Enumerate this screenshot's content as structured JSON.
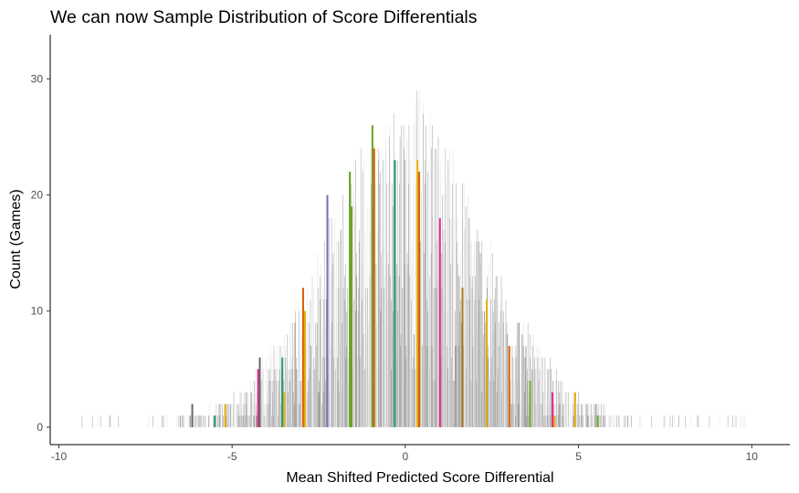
{
  "chart_data": {
    "type": "bar",
    "title": "We can now Sample Distribution of Score Differentials",
    "xlabel": "Mean Shifted Predicted Score Differential",
    "ylabel": "Count (Games)",
    "xlim": [
      -10.25,
      11.1
    ],
    "ylim": [
      -1.5,
      33.8
    ],
    "x_ticks": [
      -10,
      -5,
      0,
      5,
      10
    ],
    "x_tick_labels": [
      "-10",
      "-5",
      "0",
      "5",
      "10"
    ],
    "y_ticks": [
      0,
      10,
      20,
      30
    ],
    "y_tick_labels": [
      "0",
      "10",
      "20",
      "30"
    ],
    "grid": false,
    "legend": "none",
    "distribution": {
      "center": 0,
      "peak_count": 26,
      "spread_sd": 2.2,
      "min_x": -9.5,
      "max_x": 10.0
    },
    "highlighted_bars": [
      {
        "x": -6.15,
        "value": 2,
        "color": "#666666"
      },
      {
        "x": -5.5,
        "value": 1,
        "color": "#1b9e77"
      },
      {
        "x": -5.2,
        "value": 2,
        "color": "#e6ab02"
      },
      {
        "x": -4.25,
        "value": 5,
        "color": "#e7298a"
      },
      {
        "x": -4.2,
        "value": 6,
        "color": "#666666"
      },
      {
        "x": -3.55,
        "value": 6,
        "color": "#1b9e77"
      },
      {
        "x": -3.5,
        "value": 3,
        "color": "#e6ab02"
      },
      {
        "x": -2.95,
        "value": 12,
        "color": "#d95f02"
      },
      {
        "x": -2.9,
        "value": 10,
        "color": "#e6ab02"
      },
      {
        "x": -2.25,
        "value": 20,
        "color": "#7570b3"
      },
      {
        "x": -1.6,
        "value": 22,
        "color": "#66a61e"
      },
      {
        "x": -1.55,
        "value": 19,
        "color": "#66a61e"
      },
      {
        "x": -0.95,
        "value": 26,
        "color": "#66a61e"
      },
      {
        "x": -0.9,
        "value": 24,
        "color": "#d95f02"
      },
      {
        "x": -0.3,
        "value": 23,
        "color": "#1b9e77"
      },
      {
        "x": 0.35,
        "value": 23,
        "color": "#e6ab02"
      },
      {
        "x": 0.4,
        "value": 22,
        "color": "#d95f02"
      },
      {
        "x": 1.0,
        "value": 18,
        "color": "#e7298a"
      },
      {
        "x": 1.65,
        "value": 12,
        "color": "#a6761d"
      },
      {
        "x": 2.35,
        "value": 11,
        "color": "#e6ab02"
      },
      {
        "x": 3.0,
        "value": 7,
        "color": "#d95f02"
      },
      {
        "x": 3.6,
        "value": 4,
        "color": "#66a61e"
      },
      {
        "x": 4.25,
        "value": 3,
        "color": "#e7298a"
      },
      {
        "x": 4.3,
        "value": 1,
        "color": "#e6ab02"
      },
      {
        "x": 4.9,
        "value": 3,
        "color": "#e6ab02"
      },
      {
        "x": 5.55,
        "value": 1,
        "color": "#66a61e"
      }
    ],
    "colors": {
      "bar_fill": "#b3b3b3",
      "bar_edge": "#7f7f7f",
      "axis": "#000000",
      "tick_label": "#4d4d4d"
    }
  }
}
